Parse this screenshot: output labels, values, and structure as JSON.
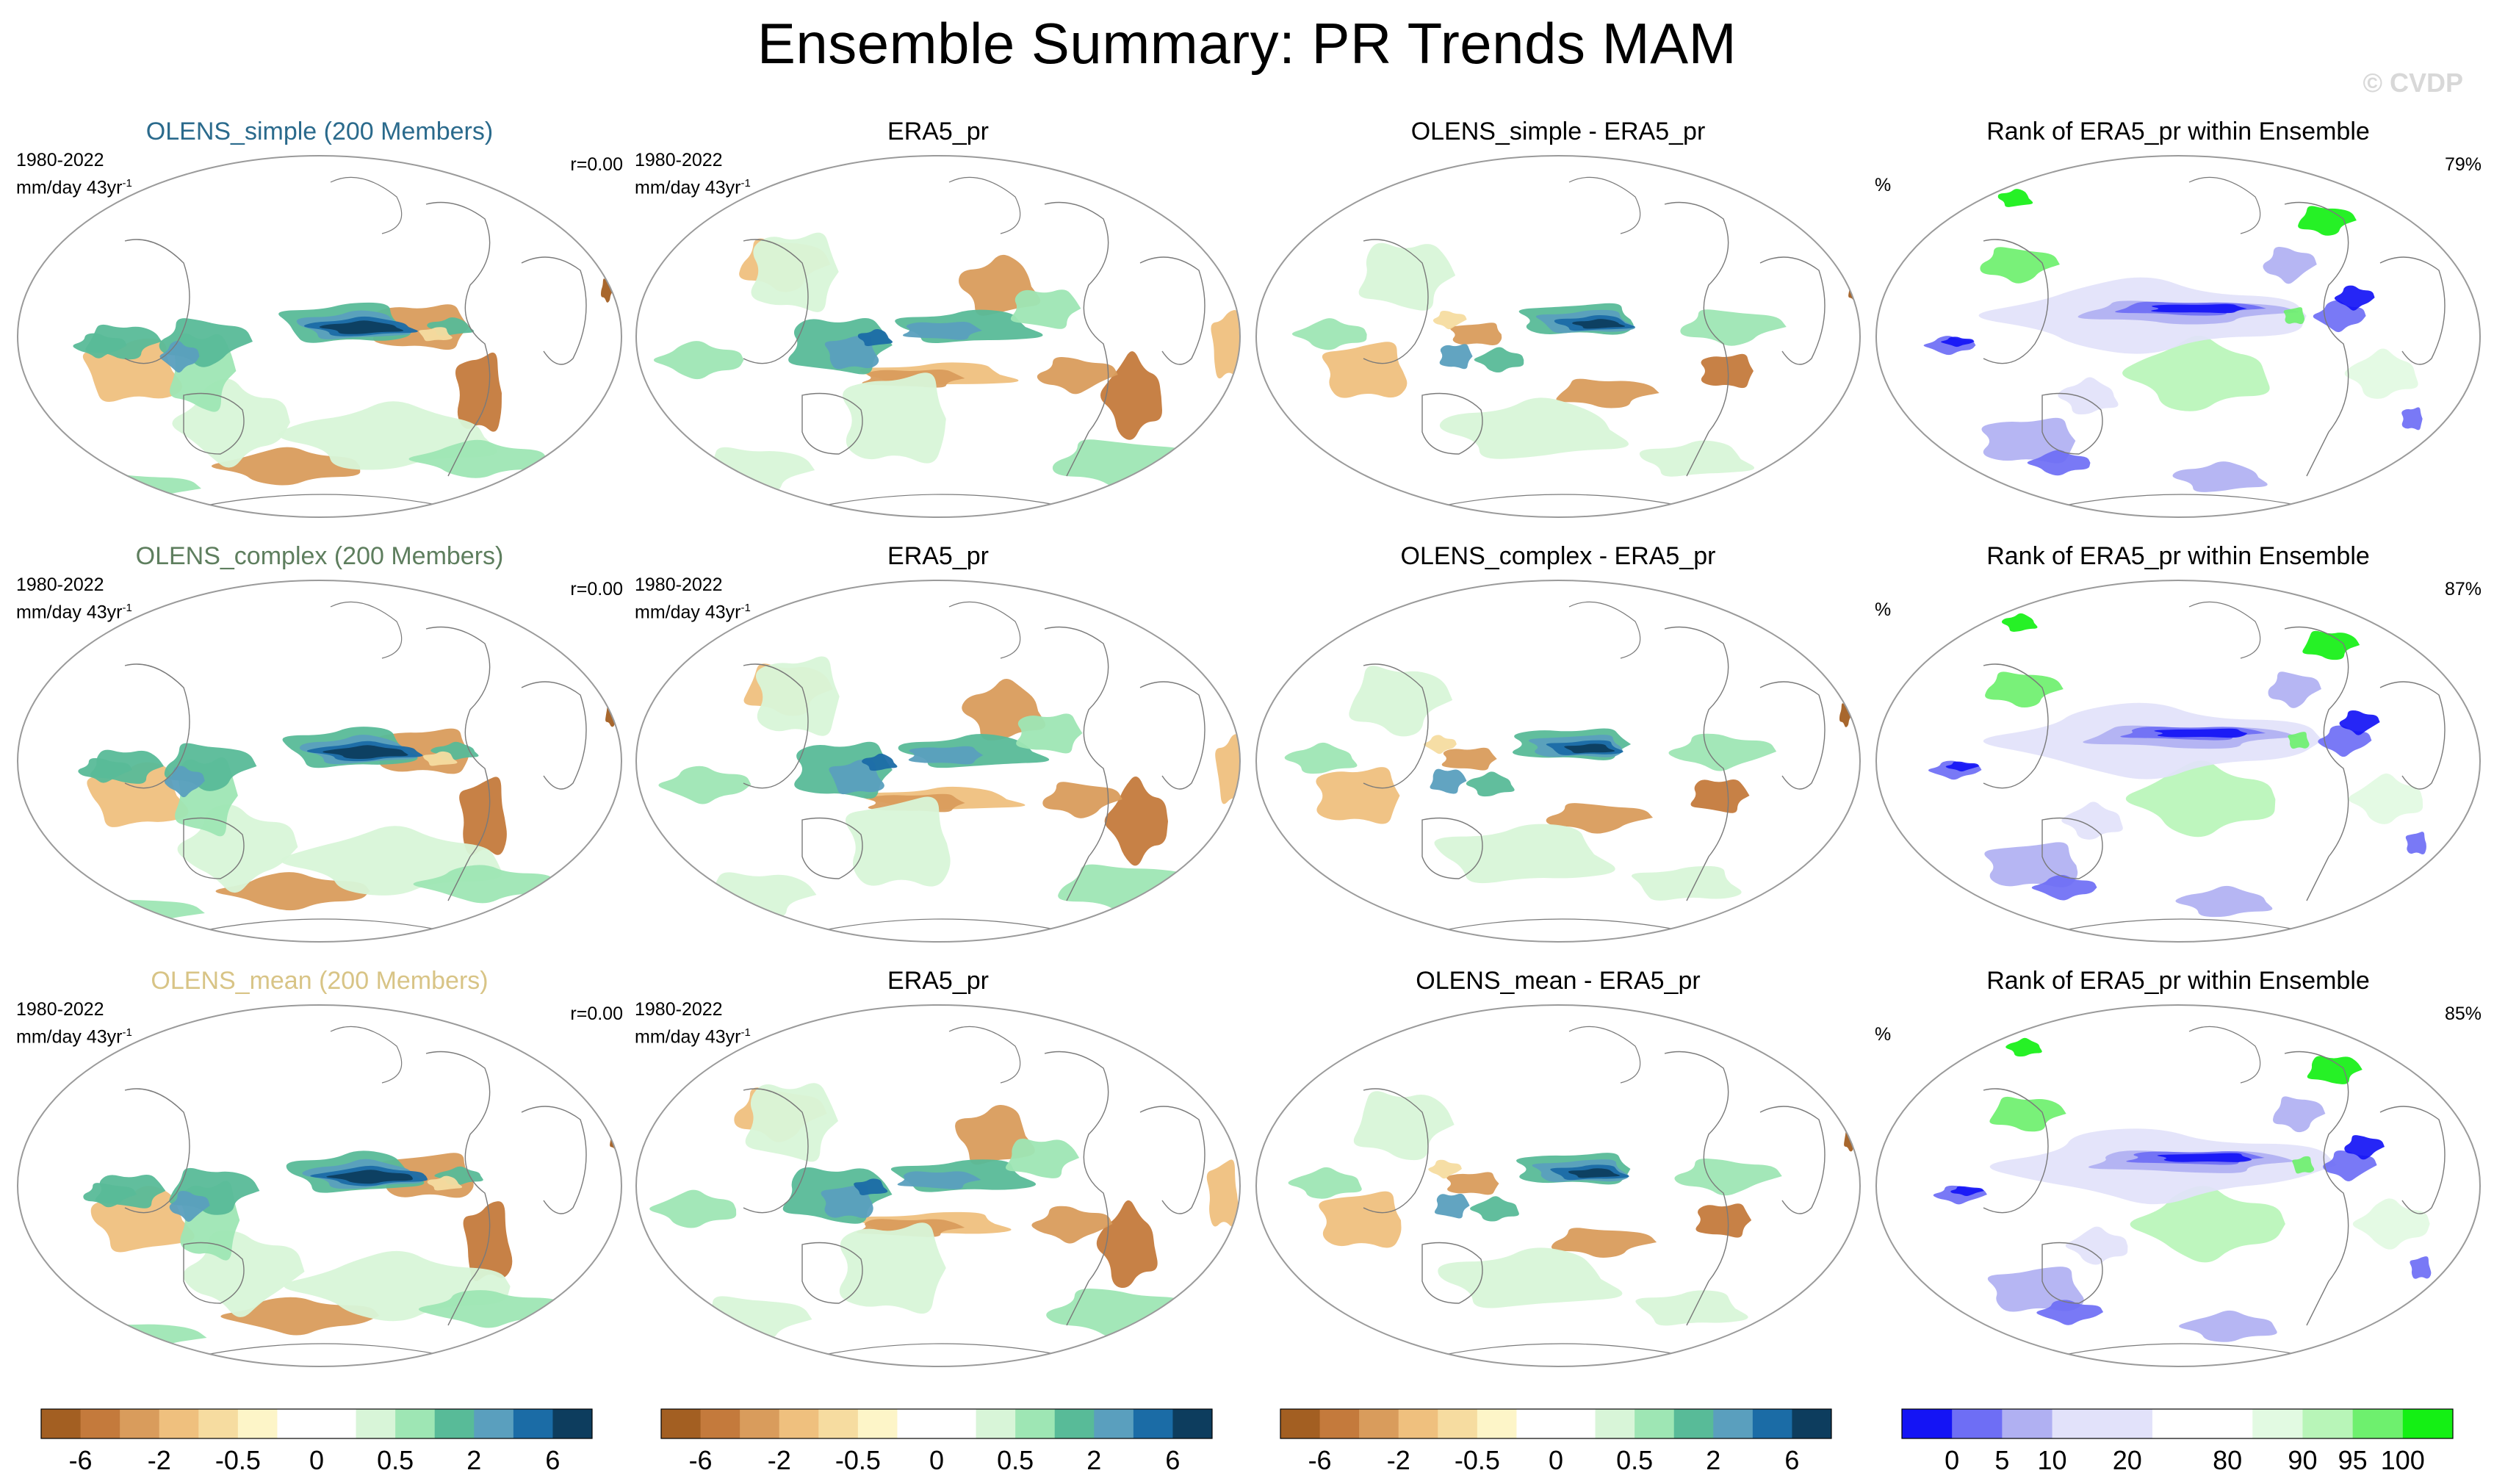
{
  "page": {
    "title": "Ensemble Summary: PR Trends MAM",
    "copyright": "© CVDP"
  },
  "labels": {
    "period": "1980-2022",
    "units_base": "mm/day 43yr",
    "units_exp": "-1",
    "percent_sign": "%"
  },
  "rows": [
    {
      "panels": [
        {
          "title": "OLENS_simple (200 Members)",
          "kind": "ens",
          "color": "#2a6a8c",
          "corr": "r=0.00"
        },
        {
          "title": "ERA5_pr",
          "kind": "obs"
        },
        {
          "title": "OLENS_simple - ERA5_pr",
          "kind": "diff"
        },
        {
          "title": "Rank of ERA5_pr within Ensemble",
          "kind": "rank",
          "pct": "79%"
        }
      ]
    },
    {
      "panels": [
        {
          "title": "OLENS_complex (200 Members)",
          "kind": "ens",
          "color": "#5e7e5e",
          "corr": "r=0.00"
        },
        {
          "title": "ERA5_pr",
          "kind": "obs"
        },
        {
          "title": "OLENS_complex - ERA5_pr",
          "kind": "diff"
        },
        {
          "title": "Rank of ERA5_pr within Ensemble",
          "kind": "rank",
          "pct": "87%"
        }
      ]
    },
    {
      "panels": [
        {
          "title": "OLENS_mean (200 Members)",
          "kind": "ens",
          "color": "#d8c486",
          "corr": "r=0.00"
        },
        {
          "title": "ERA5_pr",
          "kind": "obs"
        },
        {
          "title": "OLENS_mean - ERA5_pr",
          "kind": "diff"
        },
        {
          "title": "Rank of ERA5_pr within Ensemble",
          "kind": "rank",
          "pct": "85%"
        }
      ]
    }
  ],
  "chart_data": {
    "type": "heatmap",
    "title": "Ensemble Summary: PR Trends MAM",
    "description_units": "mm/day 43yr^-1",
    "trend_colorbar": {
      "colors": [
        "#a35f22",
        "#c47a3c",
        "#d99c5c",
        "#efc07e",
        "#f6dca0",
        "#fdf5c8",
        "#ffffff",
        "#ffffff",
        "#d8f5d8",
        "#9ee6b4",
        "#58bb98",
        "#5a9fbe",
        "#1b6ca6",
        "#0d3d5e"
      ],
      "tick_labels": [
        "-6",
        "-2",
        "-0.5",
        "0",
        "0.5",
        "2",
        "6"
      ]
    },
    "rank_colorbar": {
      "colors": [
        "#1414f5",
        "#6e6ef5",
        "#b0b0f2",
        "#e2e2fa",
        "#e2e2fa",
        "#ffffff",
        "#ffffff",
        "#e2fae2",
        "#b8f5b8",
        "#6ef06e",
        "#14f014"
      ],
      "tick_labels": [
        "0",
        "5",
        "10",
        "20",
        "80",
        "90",
        "95",
        "100"
      ]
    },
    "pattern_correlations": [
      "r=0.00",
      "r=0.00",
      "r=0.00"
    ],
    "rank_percent_within_range": [
      "79%",
      "87%",
      "85%"
    ]
  }
}
